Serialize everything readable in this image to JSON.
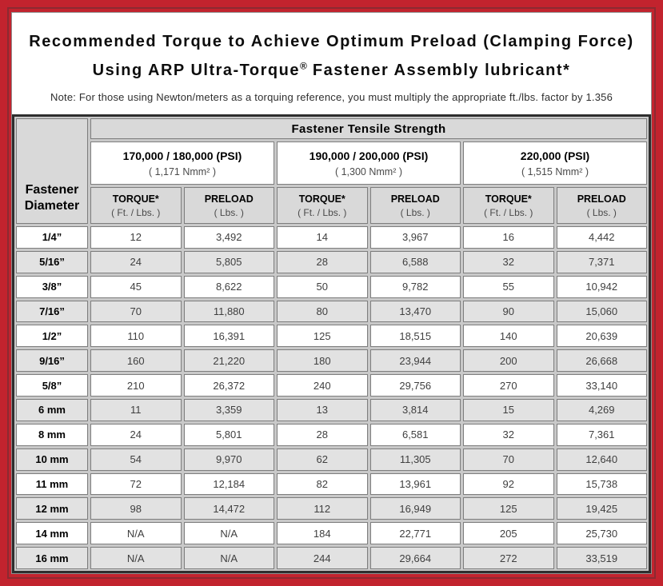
{
  "colors": {
    "frame_red": "#c2232e",
    "pinstripe_dark_red": "#8b2a31",
    "header_gray": "#d9d9d9",
    "row_alt_gray": "#e2e2e2",
    "table_border_dark": "#2e2e2e"
  },
  "title": {
    "line1": "Recommended Torque to Achieve Optimum Preload (Clamping Force)",
    "line2_prefix": "Using ARP Ultra-Torque",
    "registered": "®",
    "line2_suffix": " Fastener Assembly lubricant*",
    "note": "Note: For those using Newton/meters as a torquing reference, you must multiply the appropriate ft./lbs. factor by 1.356"
  },
  "table": {
    "corner_header": "Fastener Diameter",
    "group_header": "Fastener Tensile Strength",
    "strength_groups": [
      {
        "psi": "170,000 / 180,000 (PSI)",
        "nmm": "( 1,171 Nmm² )"
      },
      {
        "psi": "190,000 / 200,000 (PSI)",
        "nmm": "( 1,300 Nmm² )"
      },
      {
        "psi": "220,000 (PSI)",
        "nmm": "( 1,515 Nmm² )"
      }
    ],
    "col_headers": [
      {
        "title": "TORQUE*",
        "sub": "( Ft. / Lbs. )"
      },
      {
        "title": "PRELOAD",
        "sub": "( Lbs. )"
      },
      {
        "title": "TORQUE*",
        "sub": "( Ft. / Lbs. )"
      },
      {
        "title": "PRELOAD",
        "sub": "( Lbs. )"
      },
      {
        "title": "TORQUE*",
        "sub": "( Ft. / Lbs. )"
      },
      {
        "title": "PRELOAD",
        "sub": "( Lbs. )"
      }
    ],
    "rows": [
      {
        "dia": "1/4”",
        "values": [
          "12",
          "3,492",
          "14",
          "3,967",
          "16",
          "4,442"
        ]
      },
      {
        "dia": "5/16”",
        "values": [
          "24",
          "5,805",
          "28",
          "6,588",
          "32",
          "7,371"
        ]
      },
      {
        "dia": "3/8”",
        "values": [
          "45",
          "8,622",
          "50",
          "9,782",
          "55",
          "10,942"
        ]
      },
      {
        "dia": "7/16”",
        "values": [
          "70",
          "11,880",
          "80",
          "13,470",
          "90",
          "15,060"
        ]
      },
      {
        "dia": "1/2”",
        "values": [
          "110",
          "16,391",
          "125",
          "18,515",
          "140",
          "20,639"
        ]
      },
      {
        "dia": "9/16”",
        "values": [
          "160",
          "21,220",
          "180",
          "23,944",
          "200",
          "26,668"
        ]
      },
      {
        "dia": "5/8”",
        "values": [
          "210",
          "26,372",
          "240",
          "29,756",
          "270",
          "33,140"
        ]
      },
      {
        "dia": "6 mm",
        "values": [
          "11",
          "3,359",
          "13",
          "3,814",
          "15",
          "4,269"
        ]
      },
      {
        "dia": "8 mm",
        "values": [
          "24",
          "5,801",
          "28",
          "6,581",
          "32",
          "7,361"
        ]
      },
      {
        "dia": "10 mm",
        "values": [
          "54",
          "9,970",
          "62",
          "11,305",
          "70",
          "12,640"
        ]
      },
      {
        "dia": "11 mm",
        "values": [
          "72",
          "12,184",
          "82",
          "13,961",
          "92",
          "15,738"
        ]
      },
      {
        "dia": "12 mm",
        "values": [
          "98",
          "14,472",
          "112",
          "16,949",
          "125",
          "19,425"
        ]
      },
      {
        "dia": "14 mm",
        "values": [
          "N/A",
          "N/A",
          "184",
          "22,771",
          "205",
          "25,730"
        ]
      },
      {
        "dia": "16 mm",
        "values": [
          "N/A",
          "N/A",
          "244",
          "29,664",
          "272",
          "33,519"
        ]
      }
    ]
  }
}
